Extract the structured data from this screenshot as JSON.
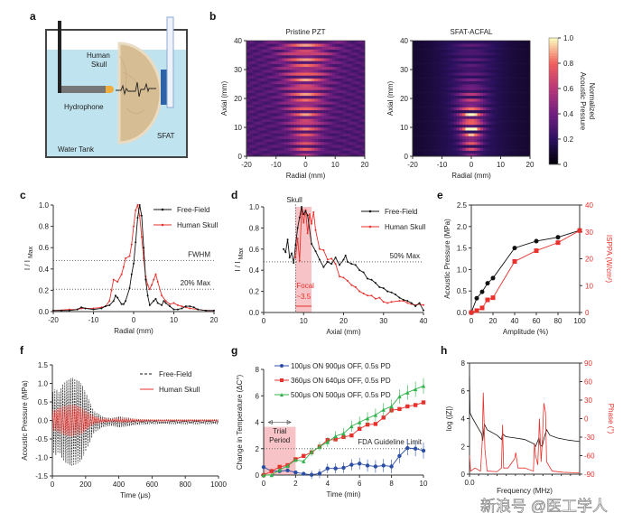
{
  "panel_letters": [
    "a",
    "b",
    "c",
    "d",
    "e",
    "f",
    "g",
    "h"
  ],
  "panel_a": {
    "labels": {
      "skull1": "Human",
      "skull2": "Skull",
      "hydrophone": "Hydrophone",
      "sfat": "SFAT",
      "tank": "Water Tank"
    }
  },
  "watermark": "新浪号 @医工学人",
  "colors": {
    "free_field": "#111111",
    "human_skull": "#e8312c",
    "blue": "#2c4fa6",
    "green": "#2fb34a",
    "focal_shade": "#f6b4b8"
  },
  "chart_data": [
    {
      "id": "b1",
      "type": "heatmap",
      "title": "Pristine PZT",
      "xlabel": "Radial (mm)",
      "ylabel": "Axial (mm)",
      "xlim": [
        -20,
        20
      ],
      "ylim": [
        0,
        40
      ],
      "xticks": [
        -20,
        -10,
        0,
        10,
        20
      ],
      "yticks": [
        0,
        10,
        20,
        30,
        40
      ],
      "colormap": "magma"
    },
    {
      "id": "b2",
      "type": "heatmap",
      "title": "SFAT-ACFAL",
      "xlabel": "Radial (mm)",
      "ylabel": "Axial (mm)",
      "xlim": [
        -20,
        20
      ],
      "ylim": [
        0,
        40
      ],
      "xticks": [
        -20,
        -10,
        0,
        10,
        20
      ],
      "yticks": [
        0,
        10,
        20,
        30,
        40
      ],
      "colormap": "magma",
      "colorbar": {
        "label1": "Normalized",
        "label2": "Acoustic Pressure",
        "range": [
          0,
          1
        ],
        "ticks": [
          "0",
          "0.2",
          "0.4",
          "0.6",
          "0.8",
          "1.0"
        ]
      }
    },
    {
      "id": "c",
      "type": "line",
      "xlabel": "Radial (mm)",
      "ylabel": "I / I",
      "ylabel_sub": "Max",
      "xlim": [
        -20,
        20
      ],
      "ylim": [
        0,
        1
      ],
      "xticks": [
        -20,
        -10,
        0,
        10,
        20
      ],
      "yticks": [
        "0.0",
        "0.2",
        "0.4",
        "0.6",
        "0.8",
        "1.0"
      ],
      "legend": "top-right",
      "reference_lines": [
        {
          "y": 0.48,
          "label": "FWHM"
        },
        {
          "y": 0.21,
          "label": "20% Max"
        }
      ],
      "series": [
        {
          "name": "Free-Field",
          "color": "#111111",
          "x": [
            -20,
            -18,
            -16,
            -14,
            -13,
            -12,
            -10,
            -8,
            -7,
            -6,
            -5,
            -4.5,
            -4,
            -3,
            -2.5,
            -2,
            -1,
            -0.5,
            0,
            0.5,
            1,
            1.5,
            2,
            2.5,
            3,
            3.5,
            4,
            5,
            5.5,
            6,
            7,
            7.5,
            8,
            9,
            10,
            11,
            12,
            13,
            14,
            15,
            16,
            18,
            20
          ],
          "y": [
            0.01,
            0.01,
            0.01,
            0.02,
            0.04,
            0.03,
            0.02,
            0.03,
            0.05,
            0.06,
            0.1,
            0.15,
            0.13,
            0.07,
            0.07,
            0.1,
            0.22,
            0.35,
            0.45,
            0.65,
            0.88,
            1.0,
            0.9,
            0.6,
            0.3,
            0.15,
            0.06,
            0.1,
            0.12,
            0.08,
            0.06,
            0.1,
            0.08,
            0.05,
            0.02,
            0.02,
            0.03,
            0.05,
            0.05,
            0.04,
            0.02,
            0.01,
            0.01
          ]
        },
        {
          "name": "Human Skull",
          "color": "#e8312c",
          "x": [
            -20,
            -16,
            -14,
            -13,
            -12,
            -10,
            -8,
            -7,
            -6,
            -5.5,
            -5,
            -4,
            -3,
            -2.5,
            -2,
            -1,
            -0.5,
            0,
            0.5,
            1,
            1.5,
            2,
            2.5,
            3,
            3.5,
            4,
            4.5,
            5,
            5.5,
            6,
            7,
            8,
            9,
            10,
            11,
            12,
            13,
            14,
            16,
            18,
            20
          ],
          "y": [
            0.01,
            0.02,
            0.02,
            0.03,
            0.03,
            0.03,
            0.04,
            0.05,
            0.1,
            0.2,
            0.3,
            0.28,
            0.35,
            0.42,
            0.5,
            0.52,
            0.63,
            0.8,
            0.95,
            1.0,
            0.9,
            0.7,
            0.5,
            0.33,
            0.25,
            0.21,
            0.25,
            0.3,
            0.35,
            0.28,
            0.15,
            0.1,
            0.07,
            0.08,
            0.06,
            0.05,
            0.04,
            0.03,
            0.02,
            0.01,
            0.01
          ]
        }
      ]
    },
    {
      "id": "d",
      "type": "line",
      "xlabel": "Axial (mm)",
      "ylabel": "I / I",
      "ylabel_sub": "Max",
      "xlim": [
        0,
        40
      ],
      "ylim": [
        0,
        1
      ],
      "xticks": [
        0,
        10,
        20,
        30,
        40
      ],
      "yticks": [
        "0.0",
        "0.2",
        "0.4",
        "0.6",
        "0.8",
        "1.0"
      ],
      "legend": "top-right",
      "reference_lines": [
        {
          "y": 0.48,
          "label": "50% Max"
        }
      ],
      "annotations": {
        "skull_label": "Skull",
        "skull_x": 8,
        "focal_label": "Focal",
        "focal_width": "~3.5",
        "focal_region": [
          8,
          12
        ]
      },
      "series": [
        {
          "name": "Free-Field",
          "color": "#111111",
          "x": [
            5,
            5.5,
            6,
            6.5,
            7,
            7.5,
            8,
            8.5,
            9,
            9.5,
            10,
            10.5,
            11,
            12,
            13,
            14,
            15,
            16,
            17,
            18,
            19,
            20,
            20.5,
            21,
            22,
            23,
            24,
            25,
            26,
            27,
            28,
            29,
            30,
            31,
            32,
            33,
            34,
            35,
            36,
            37,
            38,
            39,
            40
          ],
          "y": [
            0.6,
            0.57,
            0.69,
            0.52,
            0.56,
            0.47,
            0.64,
            0.8,
            0.9,
            1.0,
            0.93,
            0.96,
            0.92,
            0.65,
            0.58,
            0.5,
            0.43,
            0.48,
            0.46,
            0.52,
            0.45,
            0.5,
            0.54,
            0.48,
            0.46,
            0.45,
            0.4,
            0.38,
            0.32,
            0.31,
            0.28,
            0.24,
            0.23,
            0.2,
            0.19,
            0.17,
            0.14,
            0.12,
            0.11,
            0.09,
            0.06,
            0.09,
            0.02
          ]
        },
        {
          "name": "Human Skull",
          "color": "#e8312c",
          "x": [
            8,
            8.5,
            9,
            9.5,
            10,
            10.5,
            11,
            11.5,
            12,
            12.5,
            13,
            14,
            15,
            16,
            17,
            18,
            19,
            20,
            21,
            22,
            23,
            24,
            25,
            26,
            27,
            28,
            29,
            30,
            31,
            32,
            34,
            35,
            36,
            37,
            38,
            39,
            40
          ],
          "y": [
            0.52,
            0.7,
            0.49,
            0.98,
            0.85,
            0.97,
            0.75,
            0.93,
            0.84,
            0.95,
            0.78,
            0.6,
            0.59,
            0.5,
            0.51,
            0.46,
            0.34,
            0.33,
            0.3,
            0.26,
            0.24,
            0.2,
            0.18,
            0.16,
            0.16,
            0.13,
            0.14,
            0.1,
            0.09,
            0.1,
            0.11,
            0.11,
            0.09,
            0.08,
            0.07,
            0.08,
            0.07
          ]
        }
      ]
    },
    {
      "id": "e",
      "type": "line",
      "xlabel": "Amplitude (%)",
      "ylabel": "Acoustic Pressure (MPa)",
      "ylabel_right": "ISPPA (W/cm²)",
      "xlim": [
        0,
        100
      ],
      "ylim": [
        0,
        2.5
      ],
      "ylim_right": [
        0,
        40
      ],
      "xticks": [
        0,
        20,
        40,
        60,
        80,
        100
      ],
      "yticks": [
        "0.0",
        "0.5",
        "1.0",
        "1.5",
        "2.0",
        "2.5"
      ],
      "yticks_right": [
        0,
        10,
        20,
        30,
        40
      ],
      "x": [
        0,
        5,
        10,
        15,
        20,
        40,
        60,
        80,
        100
      ],
      "series": [
        {
          "axis": "left",
          "color": "#111111",
          "marker": "circle",
          "y": [
            0,
            0.33,
            0.48,
            0.68,
            0.8,
            1.5,
            1.66,
            1.75,
            1.91
          ]
        },
        {
          "axis": "right",
          "color": "#e8312c",
          "marker": "square",
          "y": [
            0,
            0.7,
            1.7,
            4.7,
            5.5,
            19,
            23,
            26,
            30.5
          ]
        }
      ]
    },
    {
      "id": "f",
      "type": "line",
      "xlabel": "Time (μs)",
      "ylabel": "Acoustic Pressure (MPa)",
      "xlim": [
        0,
        1000
      ],
      "ylim": [
        -1.5,
        1.5
      ],
      "xticks": [
        0,
        200,
        400,
        600,
        800,
        1000
      ],
      "yticks": [
        "-1.5",
        "-1.0",
        "-0.5",
        "0.0",
        "0.5",
        "1.0",
        "1.5"
      ],
      "legend": "top-right",
      "envelope_time": [
        0,
        20,
        40,
        60,
        80,
        100,
        120,
        140,
        160,
        180,
        200,
        220,
        250,
        300,
        350,
        400,
        450,
        500,
        600,
        700,
        800,
        900,
        1000
      ],
      "series": [
        {
          "name": "Free-Field",
          "color": "#111111",
          "style": "dashed",
          "peak_amplitude": [
            0.8,
            0.9,
            0.8,
            1.0,
            1.1,
            1.15,
            1.2,
            1.15,
            1.1,
            1.0,
            0.8,
            0.6,
            0.3,
            0.15,
            0.1,
            0.15,
            0.12,
            0.08,
            0.06,
            0.05,
            0.05,
            0.05,
            0.05
          ]
        },
        {
          "name": "Human Skull",
          "color": "#e8312c",
          "style": "solid",
          "peak_amplitude": [
            0.25,
            0.25,
            0.3,
            0.33,
            0.35,
            0.37,
            0.38,
            0.36,
            0.33,
            0.3,
            0.25,
            0.18,
            0.1,
            0.05,
            0.03,
            0.04,
            0.04,
            0.03,
            0.02,
            0.02,
            0.02,
            0.02,
            0.02
          ]
        }
      ]
    },
    {
      "id": "g",
      "type": "line",
      "xlabel": "Time (min)",
      "ylabel": "Change in Temperature (ΔC°)",
      "xlim": [
        0,
        10
      ],
      "ylim": [
        0,
        8
      ],
      "xticks": [
        0,
        2,
        4,
        6,
        8,
        10
      ],
      "yticks": [
        0,
        2,
        4,
        6,
        8
      ],
      "legend": "top-left",
      "reference_lines": [
        {
          "y": 2,
          "label": "FDA Guideline Limit"
        }
      ],
      "annotations": {
        "trial_label1": "Trial",
        "trial_label2": "Period",
        "trial_region": [
          0,
          2
        ]
      },
      "x": [
        0,
        0.5,
        1,
        1.5,
        2,
        2.5,
        3,
        3.5,
        4,
        4.5,
        5,
        5.5,
        6,
        6.5,
        7,
        7.5,
        8,
        8.5,
        9,
        9.5,
        10
      ],
      "series": [
        {
          "name": "100μs ON 900μs OFF, 0.5s PD",
          "color": "#2c4fa6",
          "marker": "circle",
          "y": [
            0.6,
            0.3,
            0.3,
            0.35,
            0.2,
            0.1,
            0.02,
            0.12,
            0.5,
            0.5,
            0.55,
            0.78,
            0.87,
            0.72,
            0.65,
            0.72,
            0.65,
            1.45,
            2.05,
            2.0,
            1.85
          ]
        },
        {
          "name": "360μs ON 640μs OFF, 0.5s PD",
          "color": "#e8312c",
          "marker": "square",
          "y": [
            0,
            0.3,
            0.62,
            0.75,
            1.2,
            1.45,
            1.72,
            2.15,
            2.65,
            2.7,
            2.88,
            3.0,
            3.5,
            3.82,
            3.87,
            4.35,
            4.9,
            5.0,
            5.2,
            5.3,
            5.5
          ]
        },
        {
          "name": "500μs ON 500μs OFF, 0.5s PD",
          "color": "#2fb34a",
          "marker": "triangle",
          "y": [
            0,
            0,
            0.4,
            0.7,
            1.15,
            1.05,
            1.75,
            2.15,
            2.5,
            2.95,
            3.15,
            3.7,
            4.0,
            4.3,
            4.55,
            4.95,
            5.2,
            5.95,
            6.25,
            6.5,
            6.75
          ]
        }
      ]
    },
    {
      "id": "h",
      "type": "line",
      "xlabel": "Frequency (MHz)",
      "ylabel": "log (|Z|)",
      "ylabel_right": "Phase (°)",
      "ylim": [
        0,
        8
      ],
      "ylim_right": [
        -90,
        90
      ],
      "xticks": [
        "0.0"
      ],
      "yticks": [
        0,
        2,
        4,
        6,
        8
      ],
      "yticks_right": [
        90,
        60,
        30,
        0,
        -30,
        -60,
        -90
      ],
      "series": [
        {
          "name": "log (|Z|)",
          "axis": "left",
          "color": "#111111",
          "x": [
            0,
            0.005,
            0.03,
            0.08,
            0.11,
            0.12,
            0.135,
            0.16,
            0.25,
            0.29,
            0.3,
            0.33,
            0.42,
            0.5,
            0.58,
            0.6,
            0.63,
            0.64,
            0.66,
            0.68,
            0.7,
            0.73,
            0.8,
            0.9,
            1.0
          ],
          "y": [
            7,
            4.4,
            4.0,
            3.3,
            2.9,
            2.4,
            3.6,
            3.2,
            2.8,
            2.5,
            2.9,
            2.7,
            2.6,
            2.5,
            2.2,
            2.0,
            2.6,
            2.1,
            2.0,
            2.7,
            3.2,
            2.8,
            2.6,
            2.45,
            2.35
          ]
        },
        {
          "name": "Phase",
          "axis": "right",
          "color": "#e8312c",
          "x": [
            0,
            0.01,
            0.05,
            0.1,
            0.115,
            0.125,
            0.14,
            0.16,
            0.25,
            0.29,
            0.3,
            0.31,
            0.35,
            0.41,
            0.42,
            0.44,
            0.5,
            0.58,
            0.59,
            0.6,
            0.62,
            0.635,
            0.65,
            0.66,
            0.675,
            0.69,
            0.7,
            0.75,
            0.85,
            1.0
          ],
          "y": [
            -60,
            -85,
            -80,
            -85,
            -40,
            42,
            -50,
            -85,
            -86,
            -80,
            -10,
            -80,
            -80,
            -65,
            -55,
            -80,
            -80,
            -85,
            -40,
            -60,
            -75,
            0,
            -70,
            -40,
            25,
            10,
            -70,
            -85,
            -87,
            -88
          ]
        }
      ]
    }
  ]
}
